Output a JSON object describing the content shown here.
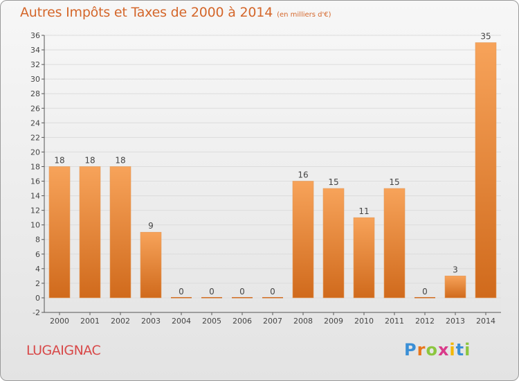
{
  "title": "Autres Impôts et Taxes de 2000 à 2014",
  "subtitle": "(en milliers d'€)",
  "city": "LUGAIGNAC",
  "brand": {
    "text": "Proxiti",
    "colors": [
      "#3a8fd6",
      "#e8761c",
      "#8cc63f",
      "#d93a8a",
      "#f2b705",
      "#3a8fd6",
      "#8cc63f"
    ]
  },
  "colors": {
    "bar_light": "#f7a35a",
    "bar_dark": "#d06a1c",
    "title": "#d4662a",
    "city": "#d84848",
    "grid": "#dcdcdc"
  },
  "chart_data": {
    "type": "bar",
    "categories": [
      "2000",
      "2001",
      "2002",
      "2003",
      "2004",
      "2005",
      "2006",
      "2007",
      "2008",
      "2009",
      "2010",
      "2011",
      "2012",
      "2013",
      "2014"
    ],
    "values": [
      18,
      18,
      18,
      9,
      0,
      0,
      0,
      0,
      16,
      15,
      11,
      15,
      0,
      3,
      35
    ],
    "value_labels": [
      "18",
      "18",
      "18",
      "9",
      "0",
      "0",
      "0",
      "0",
      "16",
      "15",
      "11",
      "15",
      "0",
      "3",
      "35"
    ],
    "title": "Autres Impôts et Taxes de 2000 à 2014",
    "subtitle": "(en milliers d'€)",
    "ylim": [
      -2,
      36
    ],
    "yticks": [
      -2,
      0,
      2,
      4,
      6,
      8,
      10,
      12,
      14,
      16,
      18,
      20,
      22,
      24,
      26,
      28,
      30,
      32,
      34,
      36
    ],
    "grid": true,
    "legend": "none"
  }
}
